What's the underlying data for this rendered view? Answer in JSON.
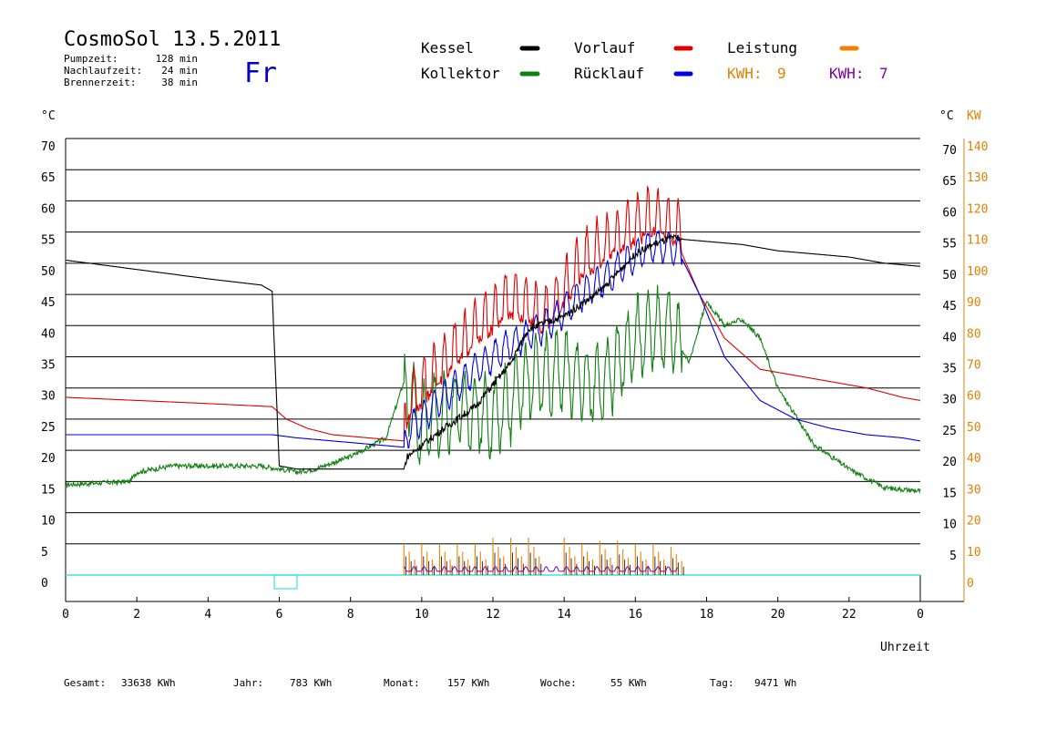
{
  "header": {
    "title": "CosmoSol 13.5.2011",
    "day": "Fr",
    "stats": [
      {
        "label": "Pumpzeit:",
        "value": "128 min"
      },
      {
        "label": "Nachlaufzeit:",
        "value": "24 min"
      },
      {
        "label": "Brennerzeit:",
        "value": "38 min"
      }
    ]
  },
  "legend": {
    "items": [
      {
        "label": "Kessel",
        "color": "#000000"
      },
      {
        "label": "Vorlauf",
        "color": "#e00000"
      },
      {
        "label": "Leistung",
        "color": "#f08000"
      },
      {
        "label": "Kollektor",
        "color": "#108010"
      },
      {
        "label": "Rücklauf",
        "color": "#0000e0"
      }
    ],
    "kwh": [
      {
        "label": "KWH:",
        "value": "9",
        "color": "#e08000"
      },
      {
        "label": "KWH:",
        "value": "7",
        "color": "#8000a0"
      }
    ]
  },
  "axes": {
    "left_unit": "°C",
    "right_unit": "°C",
    "right_unit2": "KW",
    "x_label": "Uhrzeit",
    "y_ticks": [
      0,
      5,
      10,
      15,
      20,
      25,
      30,
      35,
      40,
      45,
      50,
      55,
      60,
      65,
      70
    ],
    "right_c_ticks": [
      5,
      10,
      15,
      20,
      25,
      30,
      35,
      40,
      45,
      50,
      55,
      60,
      65,
      70
    ],
    "right_kw_ticks": [
      0,
      10,
      20,
      30,
      40,
      50,
      60,
      70,
      80,
      90,
      100,
      110,
      120,
      130,
      140
    ],
    "x_ticks": [
      "0",
      "2",
      "4",
      "6",
      "8",
      "10",
      "12",
      "14",
      "16",
      "18",
      "20",
      "22",
      "0"
    ]
  },
  "footer": [
    {
      "label": "Gesamt:",
      "value": "33638 KWh"
    },
    {
      "label": "Jahr:",
      "value": "783 KWh"
    },
    {
      "label": "Monat:",
      "value": "157 KWh"
    },
    {
      "label": "Woche:",
      "value": "55 KWh"
    },
    {
      "label": "Tag:",
      "value": "9471 Wh"
    }
  ],
  "chart_data": {
    "type": "line",
    "xlabel": "Uhrzeit",
    "ylabel": "°C",
    "xlim": [
      0,
      24
    ],
    "ylim": [
      -3,
      73
    ],
    "grid": true,
    "series": [
      {
        "name": "Kessel",
        "color": "#000000",
        "x": [
          0,
          2,
          4,
          5.5,
          5.8,
          6.0,
          6.5,
          7,
          9.5,
          9.6,
          10.5,
          11.5,
          12.5,
          13.0,
          14.0,
          15.0,
          16.0,
          16.5,
          17.0,
          18,
          19,
          20,
          21,
          22,
          23,
          24
        ],
        "y": [
          50.5,
          49,
          47.5,
          46.5,
          45.5,
          17.5,
          17,
          17,
          17,
          19,
          23,
          27,
          34,
          39.5,
          41.5,
          45.5,
          51.5,
          53,
          54,
          53.5,
          53,
          52,
          51.5,
          51,
          50,
          49.5
        ]
      },
      {
        "name": "Vorlauf",
        "color": "#e00000",
        "x": [
          0,
          2,
          4,
          5.8,
          6.2,
          6.8,
          7.5,
          8.5,
          9.5,
          9.6,
          10.5,
          11.5,
          12.5,
          13.5,
          14.5,
          15.5,
          16.5,
          17.2,
          17.8,
          18.5,
          19.5,
          20.5,
          21.5,
          22.5,
          23.5,
          24
        ],
        "y": [
          28.5,
          28,
          27.5,
          27,
          25,
          23.5,
          22.5,
          22,
          21.5,
          25,
          31,
          37,
          42,
          39,
          48,
          52,
          55,
          53,
          45,
          38,
          33,
          32,
          31,
          30,
          28.5,
          28
        ]
      },
      {
        "name": "Rücklauf",
        "color": "#0000e0",
        "x": [
          0,
          2,
          4,
          5.8,
          6.5,
          7.5,
          8.5,
          9.5,
          9.6,
          10.5,
          11.5,
          12.5,
          13.5,
          14.5,
          15.5,
          16.5,
          17.2,
          17.8,
          18.5,
          19.5,
          20.5,
          21.5,
          22.5,
          23.5,
          24
        ],
        "y": [
          22.5,
          22.5,
          22.5,
          22.5,
          22,
          21.5,
          21,
          20.5,
          23,
          28,
          33,
          37,
          40,
          45,
          49,
          53,
          52,
          45,
          35,
          28,
          25,
          23.5,
          22.5,
          22,
          21.5
        ]
      },
      {
        "name": "Kollektor",
        "color": "#108010",
        "x": [
          0,
          1.8,
          2.0,
          3,
          5.5,
          6.5,
          7,
          8,
          9,
          9.5,
          10,
          11,
          12,
          13,
          14,
          15,
          16,
          17,
          17.5,
          18,
          18.5,
          19,
          19.5,
          20,
          21,
          22,
          23,
          24
        ],
        "y": [
          14.5,
          15,
          16.5,
          17.5,
          17.5,
          16.5,
          17,
          19,
          22,
          31,
          24,
          27,
          25,
          31,
          33,
          30,
          38,
          40,
          34,
          44,
          40,
          41,
          38,
          30,
          21,
          17,
          14,
          13.5
        ]
      },
      {
        "name": "Leistung",
        "color": "#f08000",
        "unit": "KW",
        "x": [
          9.5,
          10,
          10.5,
          11,
          11.5,
          12,
          12.5,
          13,
          13.5,
          14,
          14.5,
          15,
          15.5,
          16,
          16.5,
          17
        ],
        "y": [
          10,
          10,
          10,
          10,
          10,
          12,
          12,
          12,
          0,
          12,
          10,
          11,
          11,
          10,
          10,
          9
        ]
      }
    ]
  }
}
